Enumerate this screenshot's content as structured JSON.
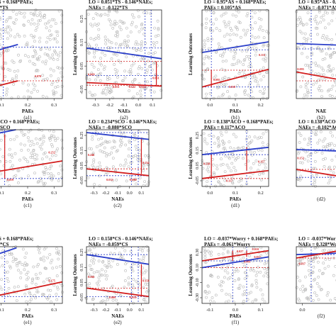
{
  "chart_data": [
    {
      "id": "a1",
      "type": "line",
      "caption": "(a1)",
      "header": [
        "TS + 0.168*PAEs;",
        "11*TS"
      ],
      "xlabel": "PAEs",
      "ylabel": "",
      "xticks": [
        "0.1",
        "0.2",
        "0.3"
      ],
      "yticks": [],
      "series": [
        {
          "color": "#2a3ec9",
          "values": [
            [
              0.0,
              0.47
            ],
            [
              0.36,
              0.39
            ]
          ]
        },
        {
          "color": "#d21d1d",
          "values": [
            [
              0.0,
              0.87
            ],
            [
              0.36,
              0.8
            ]
          ]
        }
      ],
      "dlabels": [
        "0.070"
      ]
    },
    {
      "id": "a2",
      "type": "line",
      "caption": "(a2)",
      "header": [
        "LO = 0.051*TS - 0.146*NAEs;",
        "NAEs = -0.122*TS"
      ],
      "xlabel": "NAEs",
      "ylabel": "Learning Outcomes",
      "xticks": [
        "-0.3",
        "-0.2",
        "-0.1",
        "0.0",
        "0.1"
      ],
      "yticks": [
        "0.25",
        "0.15",
        "0.05",
        "-0.05"
      ],
      "series": [
        {
          "color": "#2a3ec9",
          "values": [
            [
              0.0,
              0.43
            ],
            [
              1.0,
              0.55
            ]
          ]
        },
        {
          "color": "#d21d1d",
          "values": [
            [
              0.0,
              0.82
            ],
            [
              1.0,
              0.86
            ]
          ]
        }
      ],
      "dlabels": [
        "0.069",
        "0.051",
        "-0.122",
        "0.018",
        "0.051"
      ]
    },
    {
      "id": "b1",
      "type": "line",
      "caption": "(b1)",
      "header": [
        "LO = 0.95*AS + 0.168*PAEs;",
        "PAEs = 0.105*AS"
      ],
      "xlabel": "PAEs",
      "ylabel": "Learning Outcomes",
      "xticks": [
        "0.0",
        "0.1",
        "0.2"
      ],
      "yticks": [],
      "series": [
        {
          "color": "#2a3ec9",
          "values": [
            [
              0.0,
              0.48
            ],
            [
              1.0,
              0.36
            ]
          ]
        },
        {
          "color": "#d21d1d",
          "values": [
            [
              0.0,
              0.87
            ],
            [
              1.0,
              0.67
            ]
          ]
        }
      ],
      "dlabels": [
        "0.095",
        "0.018",
        "0.113"
      ]
    },
    {
      "id": "b2",
      "type": "line",
      "caption": "(b2)",
      "header": [
        "LO = 0.95*AS - 0.1",
        "NAEs = -0.071*AS"
      ],
      "xlabel": "NAE",
      "ylabel": "",
      "xticks": [],
      "yticks": [],
      "series": [
        {
          "color": "#2a3ec9",
          "values": [
            [
              0.0,
              0.38
            ],
            [
              1.0,
              0.4
            ]
          ]
        },
        {
          "color": "#d21d1d",
          "values": [
            [
              0.0,
              0.7
            ],
            [
              1.0,
              0.8
            ]
          ]
        }
      ],
      "dlabels": [
        "0.095"
      ]
    },
    {
      "id": "c1",
      "type": "line",
      "caption": "(c1)",
      "header": [
        "*SCO + 0.168*PAEs;",
        "1*SCO"
      ],
      "xlabel": "PAEs",
      "ylabel": "",
      "xticks": [
        "0.1",
        "0.2",
        "0.3"
      ],
      "yticks": [],
      "series": [
        {
          "color": "#2a3ec9",
          "values": [
            [
              0.0,
              0.08
            ],
            [
              0.33,
              0.0
            ]
          ]
        },
        {
          "color": "#d21d1d",
          "values": [
            [
              0.0,
              0.75
            ],
            [
              1.0,
              0.55
            ]
          ]
        }
      ],
      "dlabels": [
        "0.252",
        "0.019"
      ]
    },
    {
      "id": "c2",
      "type": "line",
      "caption": "(c2)",
      "header": [
        "LO = 0.234*SCO - 0.146*NAEs;",
        "NAEs = -0.080*SCO"
      ],
      "xlabel": "NAEs",
      "ylabel": "Learning Outcomes",
      "xticks": [
        "-0.3",
        "-0.2",
        "-0.1",
        "0.0",
        "0.1"
      ],
      "yticks": [
        "0.25",
        "0.15",
        "0.05",
        "-0.05"
      ],
      "series": [
        {
          "color": "#2a3ec9",
          "values": [
            [
              0.0,
              0.05
            ],
            [
              1.0,
              0.17
            ]
          ]
        },
        {
          "color": "#d21d1d",
          "values": [
            [
              0.0,
              0.69
            ],
            [
              1.0,
              0.81
            ]
          ]
        }
      ],
      "dlabels": [
        "0.246",
        "0.012",
        "-0.080",
        "0.234"
      ]
    },
    {
      "id": "d1",
      "type": "line",
      "caption": "(d1)",
      "header": [
        "LO = 0.138*ACO + 0.168*PAEs;",
        "PAEs = 0.117*ACO"
      ],
      "xlabel": "PAEs",
      "ylabel": "Learning Outcomes",
      "xticks": [
        "0.0",
        "0.1",
        "0.2"
      ],
      "yticks": [
        "0.25",
        "0.15",
        "0.05",
        "-0.05"
      ],
      "series": [
        {
          "color": "#2a3ec9",
          "values": [
            [
              0.0,
              0.44
            ],
            [
              1.0,
              0.31
            ]
          ]
        },
        {
          "color": "#d21d1d",
          "values": [
            [
              0.0,
              0.86
            ],
            [
              1.0,
              0.72
            ]
          ]
        }
      ],
      "dlabels": [
        "0.138",
        "0.117",
        "0.157"
      ]
    },
    {
      "id": "d2",
      "type": "line",
      "caption": "(d2)",
      "header": [
        "LO = 0.138*ACO - 0",
        "NAEs = -0.102*ACO"
      ],
      "xlabel": "",
      "ylabel": "",
      "xticks": [],
      "yticks": [],
      "series": [
        {
          "color": "#2a3ec9",
          "values": [
            [
              0.0,
              0.35
            ],
            [
              1.0,
              0.38
            ]
          ]
        },
        {
          "color": "#d21d1d",
          "values": [
            [
              0.0,
              0.7
            ],
            [
              1.0,
              0.84
            ]
          ]
        }
      ],
      "dlabels": [
        "0.152"
      ]
    },
    {
      "id": "e1",
      "type": "line",
      "caption": "(e1)",
      "header": [
        "CS + 0.168*PAEs;",
        "01*CS"
      ],
      "xlabel": "PAEs",
      "ylabel": "",
      "xticks": [
        "0.1",
        "0.2",
        "0.3"
      ],
      "yticks": [],
      "series": [
        {
          "color": "#2a3ec9",
          "values": [
            [
              0.0,
              0.16
            ],
            [
              0.34,
              0.02
            ]
          ]
        },
        {
          "color": "#d21d1d",
          "values": [
            [
              0.0,
              0.88
            ],
            [
              1.0,
              0.62
            ]
          ]
        }
      ],
      "dlabels": [
        "0.175"
      ]
    },
    {
      "id": "e2",
      "type": "line",
      "caption": "(e2)",
      "header": [
        "LO = 0.158*CS - 0.146*NAEs;",
        "NAEs = -0.059*CS"
      ],
      "xlabel": "NAEs",
      "ylabel": "Learning Outcomes",
      "xticks": [
        "-0.3",
        "-0.2",
        "-0.1",
        "0.0",
        "0.1"
      ],
      "yticks": [
        "0.25",
        "0.15",
        "0.05",
        "-0.05"
      ],
      "series": [
        {
          "color": "#2a3ec9",
          "values": [
            [
              0.0,
              0.14
            ],
            [
              1.0,
              0.31
            ]
          ]
        },
        {
          "color": "#d21d1d",
          "values": [
            [
              0.0,
              0.73
            ],
            [
              1.0,
              0.88
            ]
          ]
        }
      ],
      "dlabels": [
        "0.166",
        "0.009",
        "-0.059",
        "0.158"
      ]
    },
    {
      "id": "f1",
      "type": "line",
      "caption": "(f1)",
      "header": [
        "LO = -0.037*Worry + 0.168*PAEs;",
        "PAEs = -0.061*Worry"
      ],
      "xlabel": "PAEs",
      "ylabel": "Learning Outcomes",
      "xticks": [
        "-0.1",
        "0.0",
        "0.1"
      ],
      "yticks": [
        "0.30",
        "0.10",
        "-0.10",
        "-0.30"
      ],
      "series": [
        {
          "color": "#2a3ec9",
          "values": [
            [
              0.0,
              0.37
            ],
            [
              1.0,
              0.18
            ]
          ]
        },
        {
          "color": "#d21d1d",
          "values": [
            [
              0.0,
              0.25
            ],
            [
              1.0,
              0.07
            ]
          ]
        }
      ],
      "dlabels": [
        "0.027",
        "0.001",
        "0.010",
        "0.037"
      ]
    },
    {
      "id": "f2",
      "type": "line",
      "caption": "(f2)",
      "header": [
        "LO = -0.037*Worry - 0.",
        "NAEs = 0.328*Worry"
      ],
      "xlabel": "",
      "ylabel": "",
      "xticks": [
        "0.0",
        "0.2"
      ],
      "yticks": [],
      "series": [
        {
          "color": "#2a3ec9",
          "values": [
            [
              0.0,
              0.14
            ],
            [
              1.0,
              0.11
            ]
          ]
        },
        {
          "color": "#d21d1d",
          "values": [
            [
              0.0,
              0.2
            ],
            [
              1.0,
              0.05
            ]
          ]
        }
      ],
      "dlabels": [
        "0.037"
      ]
    }
  ]
}
